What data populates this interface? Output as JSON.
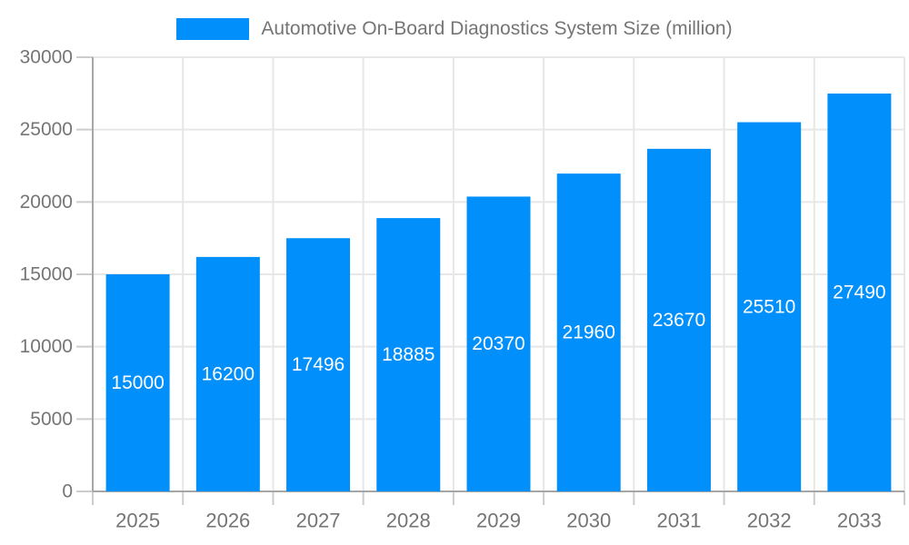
{
  "legend": {
    "label": "Automotive On-Board Diagnostics System Size (million)",
    "swatch_icon": "legend-color-swatch"
  },
  "chart_data": {
    "type": "bar",
    "title": "Automotive On-Board Diagnostics System Size (million)",
    "xlabel": "",
    "ylabel": "",
    "categories": [
      "2025",
      "2026",
      "2027",
      "2028",
      "2029",
      "2030",
      "2031",
      "2032",
      "2033"
    ],
    "series": [
      {
        "name": "Automotive On-Board Diagnostics System Size (million)",
        "values": [
          15000,
          16200,
          17496,
          18885,
          20370,
          21960,
          23670,
          25510,
          27490
        ]
      }
    ],
    "value_labels": [
      "15000",
      "16200",
      "17496",
      "18885",
      "20370",
      "21960",
      "23670",
      "25510",
      "27490"
    ],
    "ylim": [
      0,
      30000
    ],
    "ytick_step": 5000,
    "ytick_labels": [
      "0",
      "5000",
      "10000",
      "15000",
      "20000",
      "25000",
      "30000"
    ],
    "grid": true,
    "legend_position": "top",
    "colors": {
      "bar": "#008FFB",
      "axis_label_text": "#757575",
      "value_label_text": "#ffffff",
      "legend_text": "#757575",
      "gridline": "#e7e7e7",
      "axis_line": "#a6a6a6",
      "tick_mark": "#cccccc"
    }
  }
}
